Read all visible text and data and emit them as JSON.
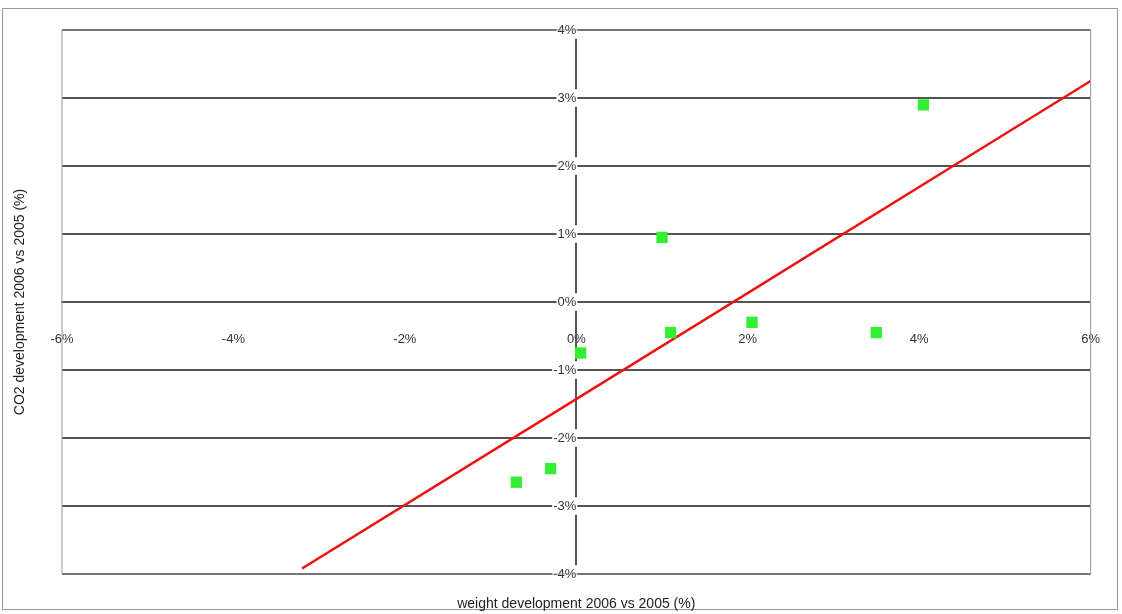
{
  "chart_data": {
    "type": "scatter",
    "xlabel": "weight development 2006 vs 2005 (%)",
    "ylabel": "CO2 development 2006 vs 2005 (%)",
    "series": [
      {
        "type": "scatter",
        "color": "#33ee33",
        "marker": "square",
        "x": [
          4.05,
          1.0,
          1.1,
          2.05,
          3.5,
          0.05,
          -0.3,
          -0.7
        ],
        "values": [
          2.9,
          0.95,
          -0.45,
          -0.3,
          -0.45,
          -0.75,
          -2.45,
          -2.65
        ]
      },
      {
        "type": "line",
        "color": "#ee1111",
        "marker": "none",
        "x": [
          -3.2,
          6
        ],
        "values": [
          -3.92,
          3.25
        ]
      }
    ],
    "xlim": [
      -6,
      6
    ],
    "xticks": [
      {
        "value": -6,
        "label": "-6%"
      },
      {
        "value": -4,
        "label": "-4%"
      },
      {
        "value": -2,
        "label": "-2%"
      },
      {
        "value": 0,
        "label": "0%"
      },
      {
        "value": 2,
        "label": "2%"
      },
      {
        "value": 4,
        "label": "4%"
      },
      {
        "value": 6,
        "label": "6%"
      }
    ],
    "ylim": [
      -4,
      4
    ],
    "yticks": [
      {
        "value": -4,
        "label": "-4%"
      },
      {
        "value": -3,
        "label": "-3%"
      },
      {
        "value": -2,
        "label": "-2%"
      },
      {
        "value": -1,
        "label": "-1%"
      },
      {
        "value": 0,
        "label": "0%"
      },
      {
        "value": 1,
        "label": "1%"
      },
      {
        "value": 2,
        "label": "2%"
      },
      {
        "value": 3,
        "label": "3%"
      },
      {
        "value": 4,
        "label": "4%"
      }
    ],
    "grid": "y",
    "legend": false
  }
}
